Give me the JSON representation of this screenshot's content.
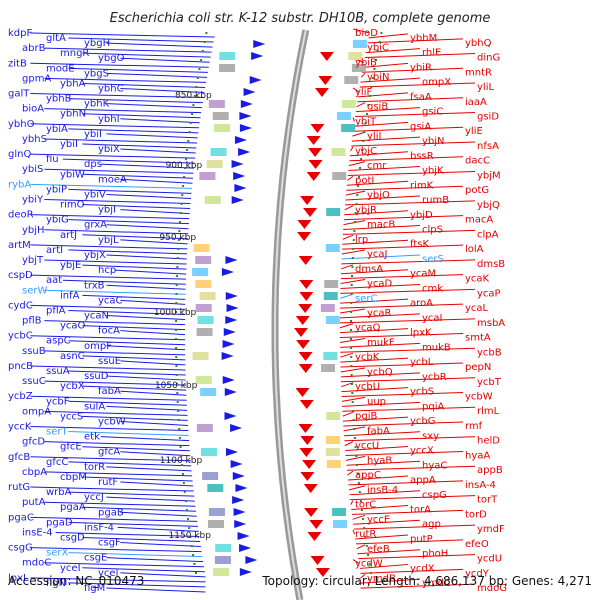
{
  "title": "Escherichia coli str. K-12 substr. DH10B, complete genome",
  "footer": {
    "accession": "Accession: NC_010473",
    "topology": "Topology: circular; Length: 4,686,137 bp; Genes: 4,271"
  },
  "ticks": [
    "850 kbp",
    "900 kbp",
    "950 kbp",
    "1000 kbp",
    "1050 kbp",
    "1100 kbp",
    "1150 kbp"
  ],
  "colors": {
    "left_strand": "#1a1ae6",
    "right_strand": "#e60000",
    "rna": "#33a0ff",
    "backbone": "#999999",
    "tick": "#2a8a2a"
  },
  "left_genes": [
    "kdpF",
    "gltA",
    "ybgH",
    "abrB",
    "mngR",
    "ybgO",
    "zitB",
    "modE",
    "ybgS",
    "gpmA",
    "ybhA",
    "ybhC",
    "galT",
    "ybhB",
    "ybhK",
    "bioA",
    "ybhN",
    "ybhI",
    "ybhO",
    "ybiA",
    "ybiI",
    "ybhS",
    "ybiI",
    "ybiX",
    "glnQ",
    "fiu",
    "dps",
    "ybiS",
    "ybiW",
    "moeA",
    "rybA",
    "ybiP",
    "ybiV",
    "ybiY",
    "rimO",
    "ybjI",
    "deoR",
    "ybiG",
    "grxA",
    "ybjH",
    "artJ",
    "ybjL",
    "artM",
    "artI",
    "ybjX",
    "ybjT",
    "ybjE",
    "hcp",
    "cspD",
    "aat",
    "trxB",
    "serW",
    "infA",
    "ycaC",
    "cydC",
    "pflA",
    "ycaN",
    "pflB",
    "ycaO",
    "focA",
    "ycbC",
    "aspC",
    "ompF",
    "ssuB",
    "asnC",
    "ssuE",
    "pncB",
    "ssuA",
    "ssuD",
    "ssuC",
    "ycbX",
    "fabA",
    "ycbZ",
    "ycbF",
    "sulA",
    "ompA",
    "yccS",
    "ycbW",
    "yccK",
    "serT",
    "etk",
    "gfcD",
    "gfcE",
    "gfcA",
    "gfcB",
    "gfcC",
    "torR",
    "cbpA",
    "cbpM",
    "rutF",
    "rutG",
    "wrbA",
    "yccJ",
    "putA",
    "pgaA",
    "pgaB",
    "pgaC",
    "pgaD",
    "insF-4",
    "insE-4",
    "csgD",
    "csgF",
    "csgG",
    "serX",
    "csgE",
    "mdoC",
    "yceI",
    "ycel",
    "lpxL",
    "flgN",
    "flgM"
  ],
  "right_genes": [
    "bioD",
    "ybhM",
    "ybhQ",
    "ybiC",
    "rhlE",
    "dinG",
    "ybiB",
    "ybiR",
    "mntR",
    "ybiN",
    "ompX",
    "yliL",
    "yliF",
    "fsaA",
    "iaaA",
    "gsiB",
    "gsiC",
    "gsiD",
    "ybiT",
    "gsiA",
    "yliE",
    "yliI",
    "ybjN",
    "nfsA",
    "ybjC",
    "bssR",
    "dacC",
    "cmr",
    "ybjK",
    "ybjM",
    "potI",
    "rimK",
    "potG",
    "ybjO",
    "rumB",
    "ybjQ",
    "ybjR",
    "ybjD",
    "macA",
    "macB",
    "clpS",
    "clpA",
    "lrp",
    "ftsK",
    "lolA",
    "ycaJ",
    "serS",
    "dmsB",
    "dmsA",
    "ycaM",
    "ycaK",
    "ycaD",
    "cmk",
    "ycaP",
    "serC",
    "aroA",
    "ycaL",
    "ycaR",
    "ycaI",
    "msbA",
    "ycaQ",
    "lpxK",
    "smtA",
    "mukF",
    "mukB",
    "ycbB",
    "ycbK",
    "ycbL",
    "pepN",
    "ycbQ",
    "ycbR",
    "ycbT",
    "ycbU",
    "ycbS",
    "ycbW",
    "uup",
    "pqiA",
    "rlmL",
    "pqiB",
    "ycbG",
    "rmf",
    "fabA",
    "sxy",
    "helD",
    "yccU",
    "yccX",
    "hyaA",
    "hyaB",
    "hyaC",
    "appB",
    "appC",
    "appA",
    "insA-4",
    "insB-4",
    "cspG",
    "torT",
    "torC",
    "torA",
    "torD",
    "yccE",
    "agp",
    "ymdF",
    "rutR",
    "putP",
    "efeO",
    "efeB",
    "phoH",
    "ycdU",
    "ycdW",
    "ycdX",
    "ycdY",
    "ymdB",
    "ymdC",
    "mdoG"
  ]
}
